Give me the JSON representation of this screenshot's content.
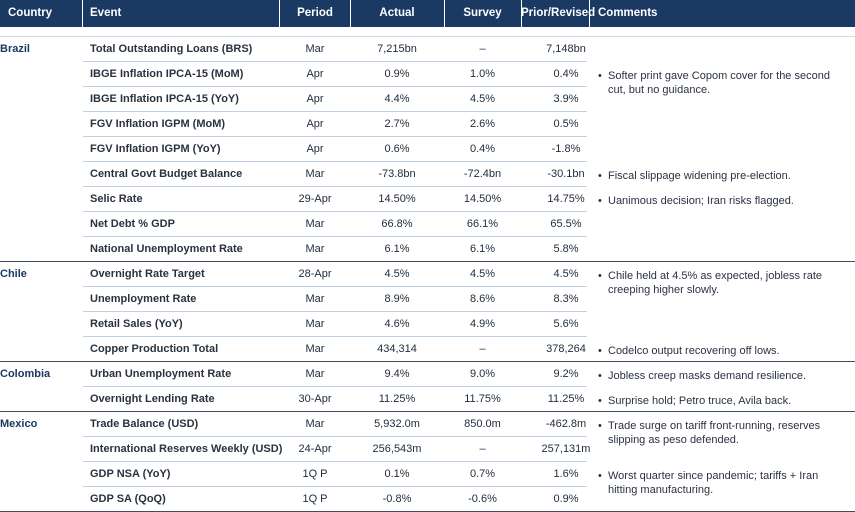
{
  "headers": {
    "country": "Country",
    "event": "Event",
    "period": "Period",
    "actual": "Actual",
    "survey": "Survey",
    "prior": "Prior/Revised",
    "comments": "Comments"
  },
  "bullet": "•",
  "groups": [
    {
      "country": "Brazil",
      "rows": [
        {
          "event": "Total Outstanding Loans (BRS)",
          "period": "Mar",
          "actual": "7,215bn",
          "survey": "–",
          "prior": "7,148bn"
        },
        {
          "event": "IBGE Inflation IPCA-15 (MoM)",
          "period": "Apr",
          "actual": "0.9%",
          "survey": "1.0%",
          "prior": "0.4%"
        },
        {
          "event": "IBGE Inflation IPCA-15 (YoY)",
          "period": "Apr",
          "actual": "4.4%",
          "survey": "4.5%",
          "prior": "3.9%"
        },
        {
          "event": "FGV Inflation IGPM (MoM)",
          "period": "Apr",
          "actual": "2.7%",
          "survey": "2.6%",
          "prior": "0.5%"
        },
        {
          "event": "FGV Inflation IGPM (YoY)",
          "period": "Apr",
          "actual": "0.6%",
          "survey": "0.4%",
          "prior": "-1.8%"
        },
        {
          "event": "Central Govt Budget Balance",
          "period": "Mar",
          "actual": "-73.8bn",
          "survey": "-72.4bn",
          "prior": "-30.1bn"
        },
        {
          "event": "Selic Rate",
          "period": "29-Apr",
          "actual": "14.50%",
          "survey": "14.50%",
          "prior": "14.75%"
        },
        {
          "event": "Net Debt % GDP",
          "period": "Mar",
          "actual": "66.8%",
          "survey": "66.1%",
          "prior": "65.5%"
        },
        {
          "event": "National Unemployment Rate",
          "period": "Mar",
          "actual": "6.1%",
          "survey": "6.1%",
          "prior": "5.8%"
        }
      ],
      "comments": [
        {
          "row": 1,
          "text": "Softer print gave Copom cover for the second cut, but no guidance."
        },
        {
          "row": 5,
          "text": "Fiscal slippage widening pre-election."
        },
        {
          "row": 6,
          "text": "Uanimous decision; Iran risks flagged."
        }
      ]
    },
    {
      "country": "Chile",
      "rows": [
        {
          "event": "Overnight Rate Target",
          "period": "28-Apr",
          "actual": "4.5%",
          "survey": "4.5%",
          "prior": "4.5%"
        },
        {
          "event": "Unemployment Rate",
          "period": "Mar",
          "actual": "8.9%",
          "survey": "8.6%",
          "prior": "8.3%"
        },
        {
          "event": "Retail Sales (YoY)",
          "period": "Mar",
          "actual": "4.6%",
          "survey": "4.9%",
          "prior": "5.6%"
        },
        {
          "event": "Copper Production Total",
          "period": "Mar",
          "actual": "434,314",
          "survey": "–",
          "prior": "378,264"
        }
      ],
      "comments": [
        {
          "row": 0,
          "text": "Chile held at 4.5% as expected, jobless rate creeping higher slowly."
        },
        {
          "row": 3,
          "text": "Codelco output recovering off lows."
        }
      ]
    },
    {
      "country": "Colombia",
      "rows": [
        {
          "event": "Urban Unemployment Rate",
          "period": "Mar",
          "actual": "9.4%",
          "survey": "9.0%",
          "prior": "9.2%"
        },
        {
          "event": "Overnight Lending Rate",
          "period": "30-Apr",
          "actual": "11.25%",
          "survey": "11.75%",
          "prior": "11.25%"
        }
      ],
      "comments": [
        {
          "row": 0,
          "text": "Jobless creep masks demand resilience."
        },
        {
          "row": 1,
          "text": "Surprise hold; Petro truce, Avila back."
        }
      ]
    },
    {
      "country": "Mexico",
      "rows": [
        {
          "event": "Trade Balance (USD)",
          "period": "Mar",
          "actual": "5,932.0m",
          "survey": "850.0m",
          "prior": "-462.8m"
        },
        {
          "event": "International Reserves Weekly (USD)",
          "period": "24-Apr",
          "actual": "256,543m",
          "survey": "–",
          "prior": "257,131m"
        },
        {
          "event": "GDP NSA (YoY)",
          "period": "1Q P",
          "actual": "0.1%",
          "survey": "0.7%",
          "prior": "1.6%"
        },
        {
          "event": "GDP SA (QoQ)",
          "period": "1Q P",
          "actual": "-0.8%",
          "survey": "-0.6%",
          "prior": "0.9%"
        }
      ],
      "comments": [
        {
          "row": 0,
          "text": "Trade surge on tariff front-running, reserves slipping as peso defended."
        },
        {
          "row": 2,
          "text": "Worst quarter since pandemic; tariffs + Iran hitting manufacturing."
        }
      ]
    }
  ]
}
